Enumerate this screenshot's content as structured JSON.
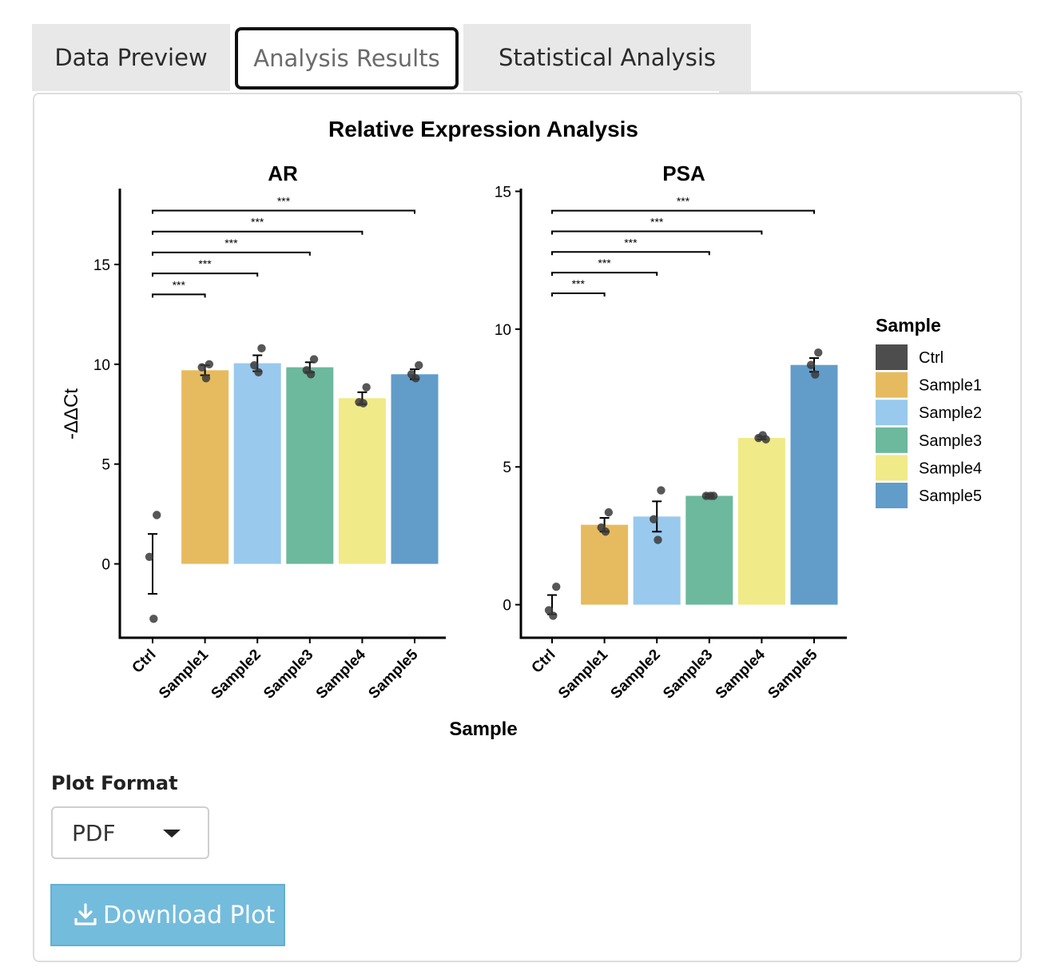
{
  "tabs": [
    {
      "label": "Data Preview",
      "active": false
    },
    {
      "label": "Analysis Results",
      "active": true
    },
    {
      "label": "Statistical Analysis",
      "active": false
    }
  ],
  "plot_format": {
    "label": "Plot Format",
    "selected": "PDF"
  },
  "download": {
    "label": "Download Plot",
    "icon": "download-icon"
  },
  "colors": {
    "Ctrl": "#4d4d4d",
    "Sample1": "#e6bb5f",
    "Sample2": "#99c9ed",
    "Sample3": "#6cb99d",
    "Sample4": "#f1ea88",
    "Sample5": "#629cc9"
  },
  "chart_data": {
    "type": "bar",
    "title": "Relative Expression Analysis",
    "xlabel": "Sample",
    "ylabel": "-ΔΔCt",
    "categories": [
      "Ctrl",
      "Sample1",
      "Sample2",
      "Sample3",
      "Sample4",
      "Sample5"
    ],
    "legend": {
      "title": "Sample",
      "position": "right",
      "entries": [
        "Ctrl",
        "Sample1",
        "Sample2",
        "Sample3",
        "Sample4",
        "Sample5"
      ]
    },
    "significance": {
      "label": "***",
      "reference": "Ctrl"
    },
    "panels": [
      {
        "title": "AR",
        "ylim": [
          -3.7,
          18.8
        ],
        "yticks": [
          0,
          5,
          10,
          15
        ],
        "means": [
          0,
          9.7,
          10.05,
          9.85,
          8.3,
          9.5
        ],
        "errors": [
          1.5,
          0.25,
          0.4,
          0.25,
          0.3,
          0.25
        ],
        "points": [
          [
            2.45,
            0.35,
            -2.75
          ],
          [
            10.0,
            9.85,
            9.3
          ],
          [
            10.8,
            9.95,
            9.6
          ],
          [
            10.25,
            9.7,
            9.5
          ],
          [
            8.85,
            8.1,
            8.05
          ],
          [
            9.95,
            9.5,
            9.3
          ]
        ],
        "sig_y": [
          13.5,
          14.55,
          15.6,
          16.65,
          17.7
        ]
      },
      {
        "title": "PSA",
        "ylim": [
          -1.2,
          15.1
        ],
        "yticks": [
          0,
          5,
          10,
          15
        ],
        "means": [
          0,
          2.9,
          3.2,
          3.95,
          6.05,
          8.7
        ],
        "errors": [
          0.35,
          0.25,
          0.55,
          0.05,
          0.05,
          0.25
        ],
        "points": [
          [
            0.65,
            -0.2,
            -0.4
          ],
          [
            3.35,
            2.8,
            2.65
          ],
          [
            4.15,
            3.1,
            2.35
          ],
          [
            3.95,
            3.95,
            3.95
          ],
          [
            6.0,
            6.05,
            6.15
          ],
          [
            9.15,
            8.7,
            8.35
          ]
        ],
        "sig_y": [
          11.3,
          12.05,
          12.8,
          13.55,
          14.3
        ]
      }
    ]
  }
}
